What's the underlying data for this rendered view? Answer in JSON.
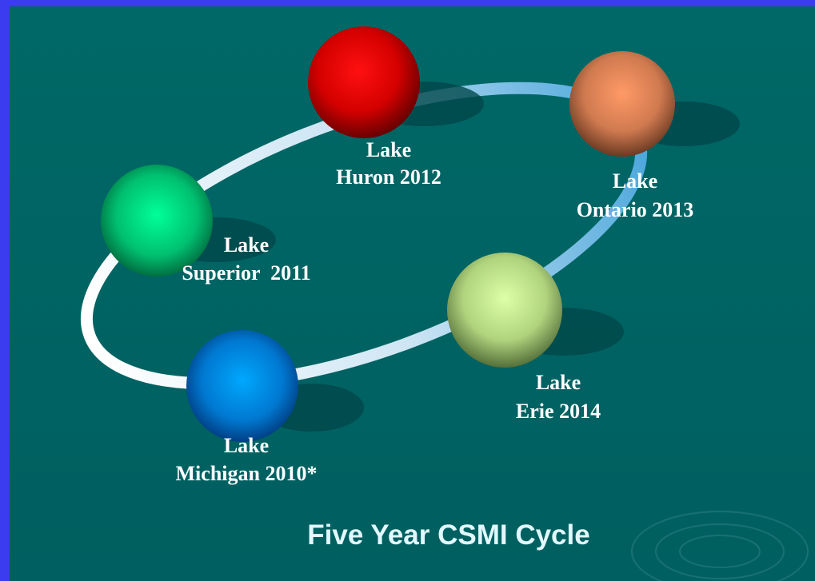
{
  "title": "Five Year CSMI Cycle",
  "nodes": [
    {
      "label": [
        "Lake",
        "Michigan 2010*"
      ]
    },
    {
      "label": [
        "Lake",
        "Superior  2011"
      ]
    },
    {
      "label": [
        "Lake",
        "Huron 2012"
      ]
    },
    {
      "label": [
        "Lake",
        "Ontario 2013"
      ]
    },
    {
      "label": [
        "Lake",
        "Erie 2014"
      ]
    }
  ]
}
